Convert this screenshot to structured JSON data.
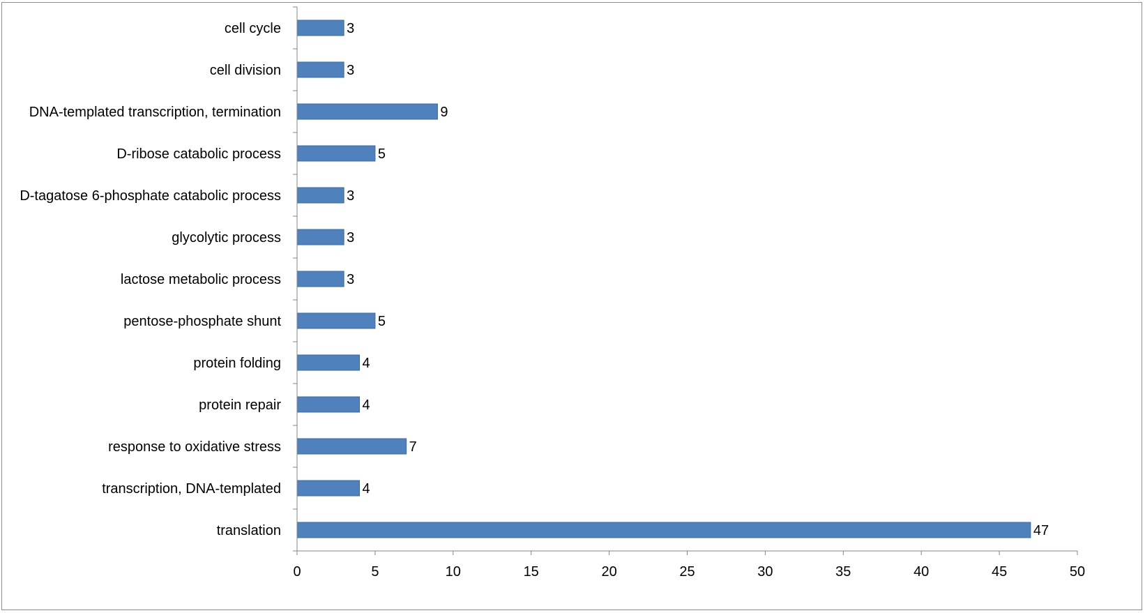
{
  "chart_data": {
    "type": "bar",
    "orientation": "horizontal",
    "title": "",
    "xlabel": "",
    "ylabel": "",
    "xlim": [
      0,
      50
    ],
    "x_ticks": [
      0,
      5,
      10,
      15,
      20,
      25,
      30,
      35,
      40,
      45,
      50
    ],
    "grid": false,
    "legend": "none",
    "bar_color": "#4f81bd",
    "categories": [
      "cell cycle",
      "cell division",
      "DNA-templated transcription, termination",
      "D-ribose catabolic process",
      "D-tagatose 6-phosphate catabolic process",
      "glycolytic process",
      "lactose metabolic process",
      "pentose-phosphate shunt",
      "protein folding",
      "protein repair",
      "response to oxidative stress",
      "transcription, DNA-templated",
      "translation"
    ],
    "values": [
      3,
      3,
      9,
      5,
      3,
      3,
      3,
      5,
      4,
      4,
      7,
      4,
      47
    ],
    "data_labels": [
      "3",
      "3",
      "9",
      "5",
      "3",
      "3",
      "3",
      "5",
      "4",
      "4",
      "7",
      "4",
      "47"
    ]
  }
}
